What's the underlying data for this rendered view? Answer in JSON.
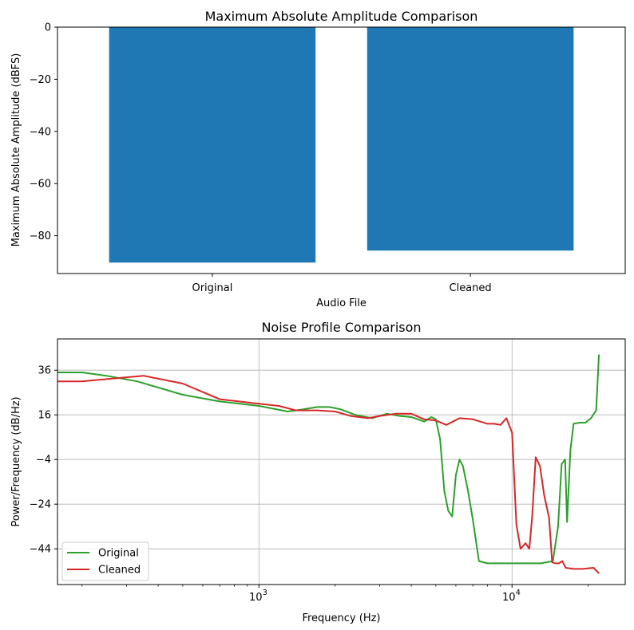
{
  "chart_data": [
    {
      "type": "bar",
      "title": "Maximum Absolute Amplitude Comparison",
      "xlabel": "Audio File",
      "ylabel": "Maximum Absolute Amplitude (dBFS)",
      "categories": [
        "Original",
        "Cleaned"
      ],
      "values": [
        -90.3,
        -85.7
      ],
      "ylim": [
        -94.5,
        0
      ],
      "yticks": [
        0,
        -20,
        -40,
        -60,
        -80
      ],
      "ytick_labels": [
        "0",
        "−20",
        "−40",
        "−60",
        "−80"
      ],
      "bar_color": "#1f77b4",
      "grid": false
    },
    {
      "type": "line",
      "title": "Noise Profile Comparison",
      "xlabel": "Frequency (Hz)",
      "ylabel": "Power/Frequency (dB/Hz)",
      "xscale": "log",
      "xlim": [
        160,
        28000
      ],
      "ylim": [
        -60,
        50
      ],
      "yticks": [
        36,
        16,
        -4,
        -24,
        -44
      ],
      "ytick_labels": [
        "36",
        "16",
        "−4",
        "−24",
        "−44"
      ],
      "xticks": [
        1000,
        10000
      ],
      "xtick_labels": [
        "10",
        "10"
      ],
      "xtick_exponents": [
        "3",
        "4"
      ],
      "grid": true,
      "legend": "lower-left",
      "series": [
        {
          "name": "Original",
          "color": "#2ca02c",
          "x": [
            160,
            200,
            250,
            330,
            500,
            700,
            1000,
            1300,
            1500,
            1700,
            1900,
            2100,
            2400,
            2800,
            3200,
            3600,
            4000,
            4500,
            4800,
            5000,
            5200,
            5400,
            5600,
            5800,
            6000,
            6200,
            6400,
            6700,
            7000,
            7400,
            8000,
            10000,
            13000,
            14500,
            15200,
            15700,
            16200,
            16500,
            17000,
            17500,
            18500,
            19500,
            20500,
            21500,
            22050
          ],
          "y": [
            35,
            35,
            33.5,
            31,
            25,
            22,
            20,
            17.5,
            18.5,
            19.5,
            19.5,
            18.5,
            16,
            14.5,
            16.5,
            15.5,
            15,
            13,
            15,
            14,
            5,
            -18,
            -27,
            -29.5,
            -11,
            -4,
            -7,
            -18,
            -31,
            -49.5,
            -50.5,
            -50.5,
            -50.5,
            -49.5,
            -34,
            -6,
            -4,
            -32,
            0,
            12,
            12.5,
            12.5,
            14.5,
            18,
            43
          ]
        },
        {
          "name": "Cleaned",
          "color": "#d62728",
          "x": [
            160,
            200,
            250,
            350,
            500,
            700,
            1000,
            1200,
            1400,
            1700,
            2000,
            2300,
            2700,
            3000,
            3500,
            4000,
            4500,
            5000,
            5500,
            6200,
            7000,
            8000,
            8500,
            9000,
            9500,
            10000,
            10400,
            10800,
            11300,
            11700,
            12000,
            12400,
            12900,
            13400,
            14000,
            14400,
            14800,
            15300,
            15800,
            16300,
            17500,
            19000,
            21000,
            22050
          ],
          "y": [
            31,
            31,
            32,
            33.5,
            30,
            23,
            21,
            20,
            18,
            18,
            17.5,
            15.5,
            14.5,
            15.5,
            16.5,
            16.5,
            14,
            13.5,
            11.5,
            14.5,
            14,
            12,
            12,
            11.5,
            14.5,
            8,
            -33,
            -44,
            -41.5,
            -44,
            -30,
            -3,
            -7,
            -20,
            -30,
            -50,
            -50.5,
            -50.5,
            -49.5,
            -52.5,
            -53,
            -53,
            -52.5,
            -55
          ]
        }
      ]
    }
  ]
}
